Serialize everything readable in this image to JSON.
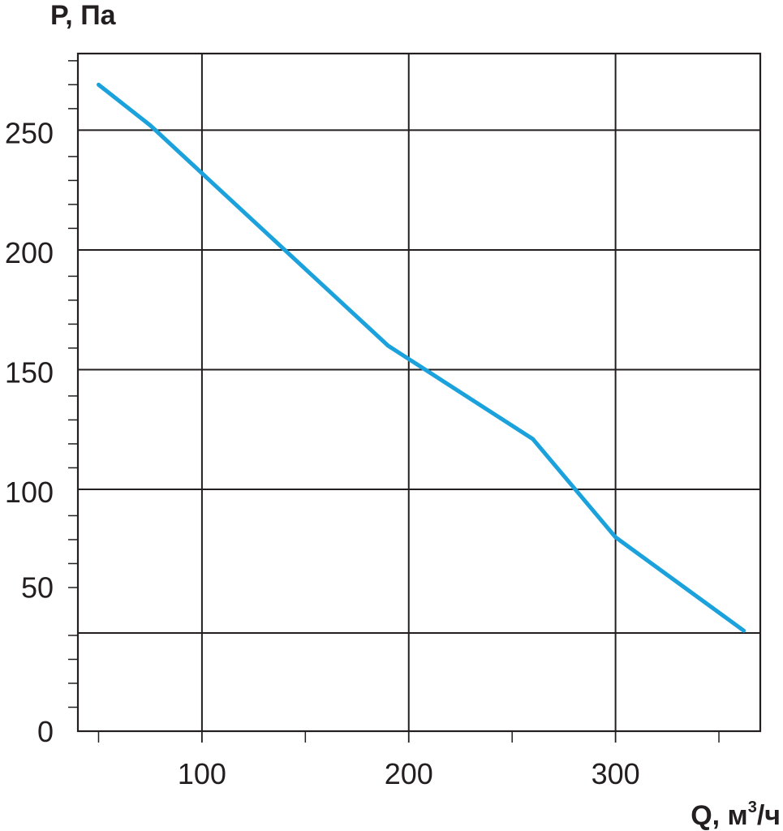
{
  "chart_data": {
    "type": "line",
    "title": "",
    "ylabel": "P, Па",
    "xlabel_main": "Q, м",
    "xlabel_sup": "3",
    "xlabel_tail": "/ч",
    "xlim": [
      40,
      370
    ],
    "ylim": [
      0,
      283
    ],
    "x_ticks": [
      {
        "value": 100,
        "label": "100"
      },
      {
        "value": 200,
        "label": "200"
      },
      {
        "value": 300,
        "label": "300"
      }
    ],
    "y_ticks": [
      {
        "value": 0,
        "label": "0"
      },
      {
        "value": 50,
        "label": "50"
      },
      {
        "value": 100,
        "label": "100"
      },
      {
        "value": 150,
        "label": "150"
      },
      {
        "value": 200,
        "label": "200"
      },
      {
        "value": 250,
        "label": "250"
      }
    ],
    "x_gridlines": [
      100,
      200,
      300
    ],
    "y_gridlines": [
      41,
      101,
      151,
      201,
      251
    ],
    "x_minor_ticks": [
      50,
      150,
      250,
      350
    ],
    "y_minor_step": 10,
    "grid": true,
    "legend": "none",
    "series": [
      {
        "color": "#1ba1dc",
        "x": [
          50,
          75,
          190,
          260,
          300,
          362
        ],
        "y": [
          270,
          253,
          161,
          122,
          81,
          42
        ]
      }
    ]
  }
}
